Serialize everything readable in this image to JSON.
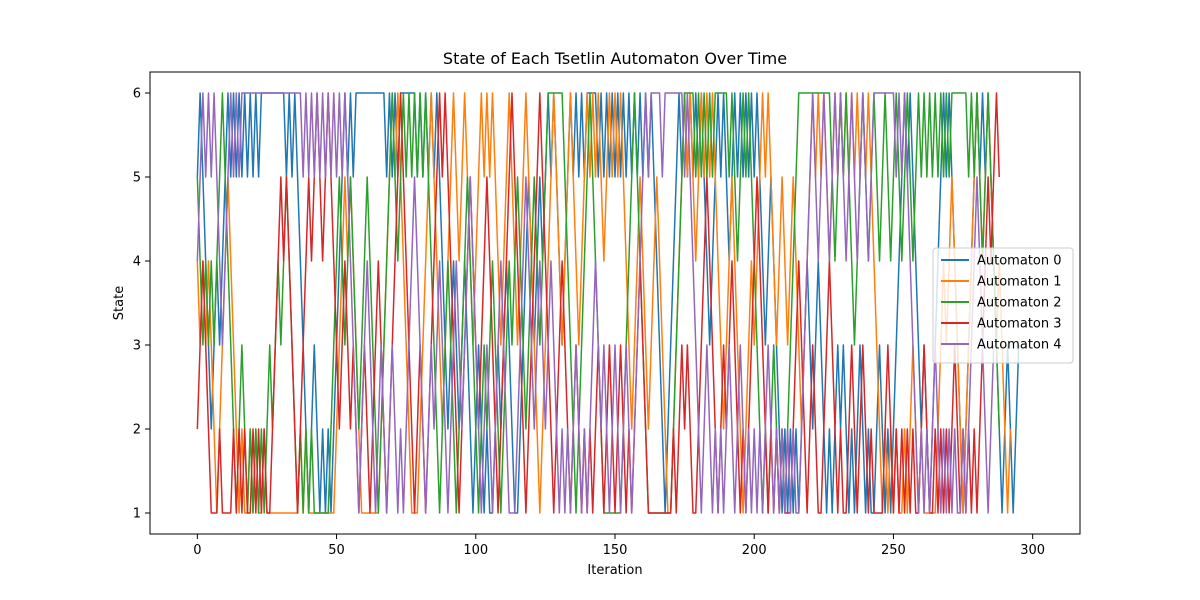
{
  "chart_data": {
    "type": "line",
    "title": "State of Each Tsetlin Automaton Over Time",
    "xlabel": "Iteration",
    "ylabel": "State",
    "xlim": [
      -17,
      317
    ],
    "ylim": [
      0.75,
      6.25
    ],
    "xticks": [
      0,
      50,
      100,
      150,
      200,
      250,
      300
    ],
    "yticks": [
      1,
      2,
      3,
      4,
      5,
      6
    ],
    "grid": false,
    "legend_position": "center-right",
    "series": [
      {
        "name": "Automaton 0",
        "color": "#1f77b4",
        "values": [
          5,
          6,
          5,
          4,
          3,
          2,
          3,
          4,
          3,
          4,
          5,
          6,
          5,
          6,
          5,
          6,
          5,
          6,
          5,
          6,
          5,
          6,
          5,
          6,
          6,
          6,
          6,
          6,
          6,
          6,
          6,
          6,
          5,
          6,
          5,
          6,
          5,
          4,
          3,
          2,
          1,
          2,
          3,
          2,
          1,
          2,
          1,
          2,
          1,
          2,
          3,
          4,
          5,
          6,
          5,
          6,
          5,
          6,
          6,
          6,
          6,
          6,
          6,
          6,
          6,
          6,
          6,
          6,
          5,
          6,
          5,
          6,
          5,
          6,
          6,
          6,
          6,
          6,
          6,
          5,
          6,
          5,
          6,
          5,
          6,
          5,
          6,
          5,
          4,
          3,
          2,
          3,
          4,
          3,
          2,
          3,
          4,
          3,
          2,
          1,
          2,
          3,
          2,
          1,
          2,
          1,
          1,
          2,
          3,
          2,
          3,
          4,
          3,
          2,
          1,
          1,
          2,
          3,
          4,
          5,
          4,
          3,
          4,
          5,
          4,
          5,
          6,
          5,
          6,
          5,
          4,
          3,
          4,
          5,
          6,
          5,
          6,
          5,
          6,
          5,
          6,
          6,
          6,
          6,
          5,
          6,
          5,
          6,
          5,
          6,
          5,
          6,
          5,
          6,
          5,
          6,
          5,
          6,
          5,
          6,
          5,
          6,
          5,
          6,
          5,
          4,
          3,
          2,
          1,
          2,
          3,
          4,
          5,
          6,
          5,
          6,
          5,
          6,
          5,
          6,
          5,
          6,
          5,
          4,
          3,
          4,
          5,
          6,
          5,
          6,
          5,
          4,
          5,
          6,
          5,
          6,
          5,
          6,
          5,
          6,
          5,
          6,
          5,
          4,
          3,
          4,
          5,
          4,
          3,
          2,
          1,
          2,
          1,
          2,
          1,
          2,
          1,
          2,
          3,
          4,
          3,
          2,
          3,
          4,
          3,
          2,
          1,
          2,
          1,
          2,
          3,
          2,
          3,
          2,
          1,
          2,
          1,
          2,
          3,
          2,
          1,
          2,
          1,
          1,
          2,
          3,
          2,
          1,
          2,
          1,
          2,
          3,
          4,
          5,
          6,
          5,
          6,
          5,
          4,
          3,
          2,
          3,
          2,
          1,
          2,
          3,
          4,
          5,
          6,
          5,
          6,
          5,
          4,
          3,
          2,
          1,
          2,
          3,
          4,
          5,
          6,
          5,
          6,
          5,
          6,
          5,
          4,
          3,
          2,
          1,
          2,
          3,
          2,
          1,
          2,
          3
        ]
      },
      {
        "name": "Automaton 1",
        "color": "#ff7f0e",
        "values": [
          4,
          3,
          4,
          3,
          4,
          3,
          2,
          1,
          2,
          3,
          4,
          5,
          4,
          3,
          2,
          1,
          2,
          1,
          1,
          2,
          1,
          2,
          1,
          1,
          2,
          1,
          1,
          1,
          1,
          1,
          1,
          1,
          1,
          1,
          1,
          1,
          1,
          2,
          1,
          2,
          1,
          1,
          1,
          1,
          1,
          1,
          1,
          1,
          1,
          1,
          2,
          3,
          4,
          5,
          4,
          5,
          4,
          3,
          2,
          1,
          1,
          1,
          1,
          1,
          1,
          1,
          2,
          3,
          4,
          5,
          6,
          5,
          6,
          5,
          4,
          3,
          2,
          1,
          1,
          1,
          2,
          3,
          4,
          5,
          6,
          5,
          4,
          3,
          2,
          3,
          4,
          5,
          6,
          5,
          4,
          5,
          6,
          5,
          4,
          3,
          4,
          5,
          6,
          5,
          6,
          5,
          6,
          5,
          4,
          3,
          4,
          5,
          6,
          5,
          4,
          3,
          4,
          5,
          6,
          5,
          4,
          3,
          2,
          1,
          2,
          3,
          4,
          5,
          6,
          5,
          4,
          3,
          4,
          5,
          6,
          5,
          4,
          3,
          4,
          5,
          6,
          5,
          6,
          5,
          6,
          5,
          4,
          5,
          6,
          5,
          6,
          5,
          6,
          5,
          4,
          3,
          2,
          3,
          4,
          5,
          4,
          3,
          2,
          3,
          4,
          5,
          4,
          3,
          2,
          1,
          1,
          2,
          3,
          4,
          5,
          6,
          5,
          6,
          5,
          4,
          5,
          6,
          5,
          6,
          5,
          6,
          5,
          4,
          3,
          2,
          3,
          4,
          5,
          4,
          3,
          2,
          1,
          2,
          3,
          4,
          3,
          4,
          5,
          6,
          5,
          6,
          5,
          4,
          3,
          4,
          5,
          4,
          3,
          4,
          5,
          4,
          3,
          2,
          3,
          4,
          5,
          6,
          5,
          6,
          5,
          6,
          5,
          4,
          5,
          6,
          5,
          6,
          5,
          6,
          5,
          6,
          5,
          6,
          5,
          6,
          5,
          6,
          5,
          4,
          3,
          2,
          1,
          2,
          1,
          2,
          1,
          2,
          1,
          1,
          2,
          1,
          2,
          3,
          2,
          1,
          2,
          1,
          1,
          1,
          1,
          1,
          2,
          3,
          4,
          3,
          4,
          5,
          4,
          3,
          2,
          1,
          2,
          3,
          4,
          5,
          6,
          5,
          4,
          5,
          6,
          5,
          4,
          3,
          4,
          3,
          2,
          1,
          2
        ]
      },
      {
        "name": "Automaton 2",
        "color": "#2ca02c",
        "values": [
          5,
          4,
          3,
          4,
          3,
          4,
          3,
          4,
          5,
          6,
          5,
          4,
          3,
          2,
          1,
          2,
          3,
          2,
          1,
          2,
          1,
          2,
          1,
          2,
          1,
          2,
          3,
          2,
          3,
          4,
          3,
          4,
          5,
          4,
          3,
          2,
          1,
          2,
          1,
          2,
          1,
          2,
          1,
          1,
          1,
          1,
          1,
          1,
          2,
          3,
          4,
          5,
          4,
          3,
          4,
          5,
          4,
          3,
          2,
          3,
          4,
          5,
          4,
          3,
          2,
          1,
          2,
          3,
          4,
          5,
          6,
          5,
          4,
          5,
          6,
          5,
          6,
          5,
          6,
          5,
          6,
          5,
          6,
          5,
          4,
          3,
          2,
          1,
          2,
          3,
          4,
          3,
          2,
          1,
          2,
          3,
          4,
          5,
          4,
          3,
          2,
          1,
          2,
          3,
          2,
          3,
          4,
          3,
          2,
          1,
          2,
          3,
          4,
          3,
          4,
          5,
          4,
          3,
          2,
          3,
          4,
          5,
          4,
          3,
          4,
          5,
          6,
          6,
          6,
          6,
          6,
          6,
          5,
          4,
          3,
          2,
          1,
          2,
          3,
          4,
          5,
          6,
          5,
          4,
          3,
          2,
          1,
          1,
          1,
          1,
          1,
          1,
          1,
          2,
          3,
          4,
          5,
          6,
          5,
          4,
          3,
          2,
          1,
          1,
          1,
          1,
          1,
          1,
          1,
          1,
          1,
          2,
          3,
          4,
          5,
          6,
          6,
          6,
          6,
          5,
          6,
          5,
          6,
          5,
          6,
          5,
          6,
          6,
          6,
          6,
          6,
          5,
          6,
          5,
          4,
          5,
          6,
          5,
          6,
          5,
          4,
          3,
          2,
          1,
          2,
          1,
          2,
          3,
          2,
          1,
          2,
          1,
          2,
          3,
          4,
          5,
          6,
          6,
          6,
          6,
          6,
          6,
          6,
          6,
          6,
          6,
          6,
          6,
          5,
          4,
          5,
          6,
          5,
          6,
          5,
          4,
          3,
          4,
          5,
          6,
          5,
          4,
          5,
          6,
          5,
          4,
          5,
          6,
          5,
          4,
          5,
          6,
          5,
          4,
          5,
          6,
          5,
          4,
          5,
          6,
          5,
          6,
          5,
          6,
          5,
          6,
          5,
          6,
          5,
          6,
          5,
          6,
          6,
          6,
          6,
          6,
          6,
          5,
          6,
          5,
          6,
          5,
          4,
          5,
          6,
          5,
          4,
          3,
          2
        ]
      },
      {
        "name": "Automaton 3",
        "color": "#d62728",
        "values": [
          2,
          3,
          4,
          3,
          2,
          1,
          1,
          1,
          2,
          1,
          1,
          1,
          1,
          2,
          1,
          2,
          1,
          2,
          1,
          1,
          2,
          1,
          2,
          1,
          2,
          1,
          1,
          2,
          3,
          4,
          5,
          4,
          5,
          4,
          3,
          2,
          1,
          2,
          3,
          4,
          5,
          4,
          5,
          6,
          5,
          4,
          5,
          6,
          5,
          4,
          3,
          2,
          3,
          4,
          3,
          2,
          3,
          2,
          1,
          2,
          3,
          2,
          1,
          2,
          3,
          4,
          3,
          2,
          1,
          2,
          3,
          4,
          5,
          6,
          5,
          4,
          3,
          2,
          1,
          2,
          3,
          2,
          1,
          2,
          3,
          4,
          5,
          6,
          5,
          6,
          5,
          4,
          3,
          2,
          1,
          2,
          3,
          4,
          5,
          4,
          3,
          2,
          3,
          4,
          5,
          4,
          3,
          2,
          1,
          2,
          3,
          4,
          5,
          6,
          5,
          4,
          3,
          2,
          1,
          2,
          3,
          4,
          5,
          6,
          5,
          4,
          3,
          2,
          1,
          2,
          3,
          4,
          3,
          2,
          1,
          2,
          3,
          2,
          1,
          2,
          1,
          2,
          1,
          2,
          3,
          2,
          1,
          2,
          3,
          2,
          1,
          2,
          3,
          2,
          1,
          2,
          1,
          2,
          3,
          4,
          3,
          2,
          1,
          1,
          1,
          1,
          1,
          1,
          1,
          1,
          1,
          2,
          1,
          2,
          3,
          2,
          3,
          2,
          1,
          1,
          2,
          3,
          4,
          5,
          4,
          3,
          2,
          1,
          2,
          3,
          2,
          3,
          4,
          3,
          2,
          1,
          2,
          1,
          2,
          3,
          4,
          5,
          4,
          3,
          2,
          1,
          2,
          1,
          2,
          1,
          2,
          1,
          1,
          1,
          2,
          3,
          4,
          3,
          2,
          1,
          2,
          3,
          2,
          1,
          1,
          2,
          3,
          4,
          3,
          2,
          1,
          2,
          1,
          1,
          2,
          3,
          2,
          1,
          2,
          3,
          2,
          1,
          2,
          1,
          1,
          1,
          1,
          2,
          3,
          2,
          1,
          2,
          1,
          2,
          1,
          2,
          1,
          2,
          1,
          1,
          2,
          3,
          2,
          1,
          1,
          2,
          1,
          2,
          1,
          2,
          1,
          2,
          3,
          2,
          1,
          2,
          1,
          2,
          1,
          2,
          1,
          2,
          3,
          4,
          5,
          4,
          5,
          6,
          5
        ]
      },
      {
        "name": "Automaton 4",
        "color": "#9467bd",
        "values": [
          4,
          5,
          6,
          5,
          6,
          5,
          6,
          5,
          4,
          3,
          4,
          5,
          6,
          5,
          6,
          5,
          6,
          6,
          6,
          6,
          6,
          6,
          6,
          6,
          6,
          6,
          6,
          6,
          6,
          6,
          6,
          6,
          6,
          6,
          6,
          6,
          6,
          6,
          5,
          6,
          5,
          6,
          5,
          6,
          5,
          6,
          5,
          6,
          5,
          6,
          5,
          6,
          5,
          6,
          5,
          4,
          3,
          2,
          1,
          2,
          3,
          4,
          3,
          2,
          1,
          2,
          3,
          2,
          1,
          2,
          3,
          2,
          1,
          2,
          1,
          2,
          3,
          4,
          5,
          4,
          3,
          2,
          1,
          2,
          3,
          2,
          3,
          4,
          3,
          2,
          1,
          2,
          3,
          4,
          3,
          2,
          3,
          4,
          5,
          4,
          3,
          2,
          1,
          2,
          3,
          2,
          1,
          2,
          3,
          4,
          3,
          2,
          1,
          1,
          1,
          2,
          3,
          4,
          5,
          4,
          3,
          2,
          3,
          4,
          3,
          2,
          3,
          4,
          3,
          2,
          1,
          2,
          1,
          2,
          1,
          2,
          3,
          2,
          1,
          2,
          1,
          2,
          3,
          4,
          3,
          2,
          3,
          2,
          1,
          2,
          3,
          2,
          1,
          2,
          3,
          2,
          1,
          2,
          3,
          4,
          5,
          6,
          5,
          6,
          6,
          6,
          6,
          5,
          6,
          6,
          6,
          6,
          6,
          6,
          6,
          5,
          6,
          5,
          4,
          3,
          2,
          1,
          2,
          3,
          2,
          1,
          2,
          1,
          2,
          1,
          2,
          3,
          2,
          1,
          2,
          3,
          2,
          1,
          2,
          1,
          2,
          1,
          2,
          1,
          2,
          3,
          2,
          1,
          2,
          1,
          2,
          1,
          2,
          1,
          2,
          1,
          1,
          2,
          3,
          4,
          5,
          6,
          5,
          4,
          5,
          6,
          5,
          4,
          5,
          6,
          5,
          6,
          5,
          4,
          5,
          6,
          5,
          4,
          5,
          6,
          5,
          4,
          5,
          6,
          6,
          6,
          6,
          6,
          6,
          6,
          6,
          5,
          6,
          5,
          6,
          5,
          4,
          3,
          2,
          1,
          2,
          1,
          2,
          1,
          2,
          3,
          2,
          1,
          2,
          1,
          2,
          1,
          2,
          1,
          1,
          2,
          1,
          2,
          3,
          4,
          5,
          4,
          3,
          2,
          1,
          2,
          3
        ]
      }
    ]
  }
}
